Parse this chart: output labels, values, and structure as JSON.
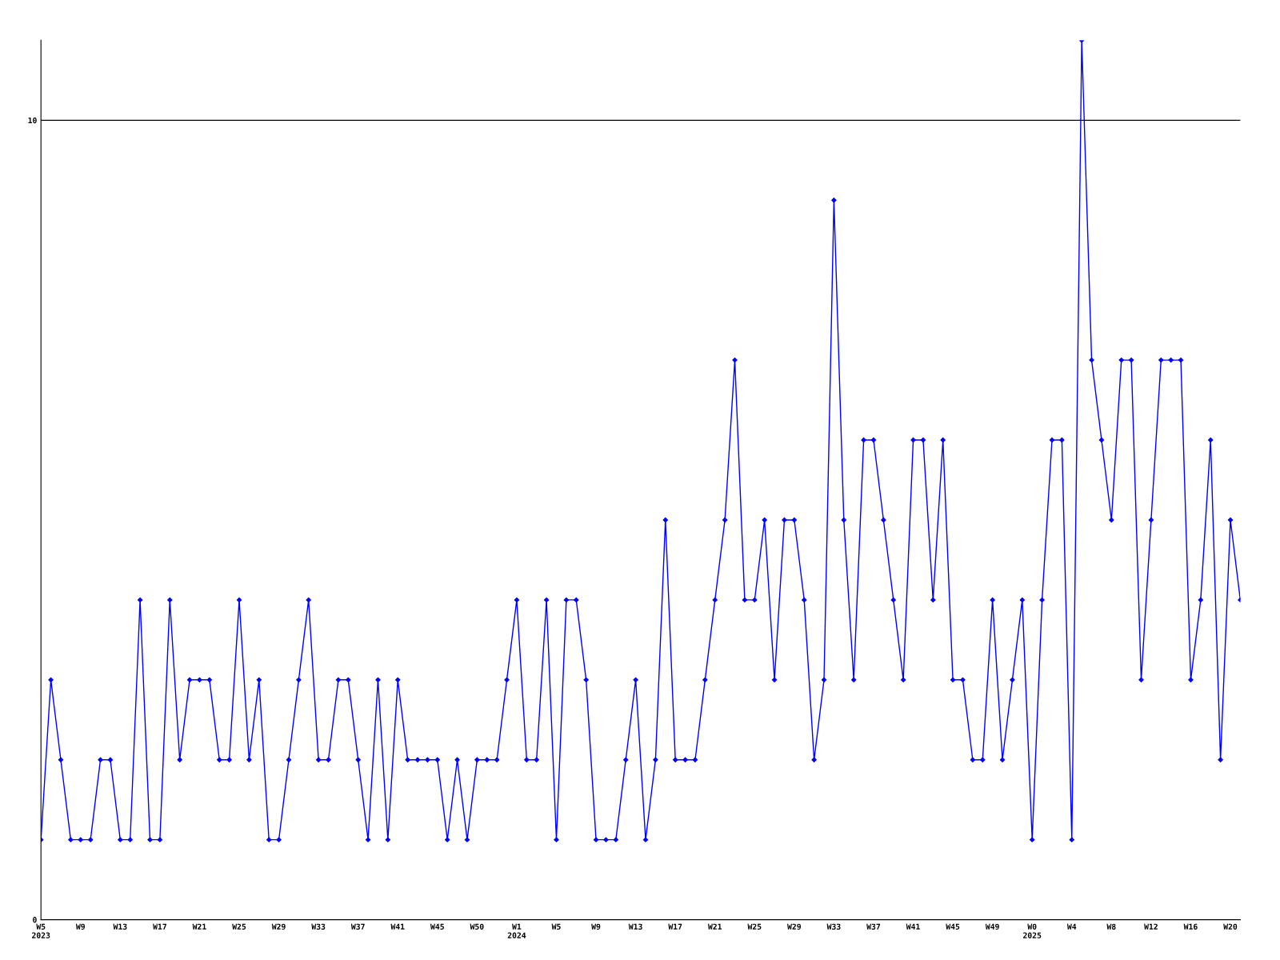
{
  "chart_data": {
    "type": "line",
    "categories": [
      "W5\n2023",
      null,
      null,
      null,
      "W9",
      null,
      null,
      null,
      "W13",
      null,
      null,
      null,
      "W17",
      null,
      null,
      null,
      "W21",
      null,
      null,
      null,
      "W25",
      null,
      null,
      null,
      "W29",
      null,
      null,
      null,
      "W33",
      null,
      null,
      null,
      "W37",
      null,
      null,
      null,
      "W41",
      null,
      null,
      null,
      "W45",
      null,
      null,
      null,
      "W50",
      null,
      null,
      null,
      "W1\n2024",
      null,
      null,
      null,
      "W5",
      null,
      null,
      null,
      "W9",
      null,
      null,
      null,
      "W13",
      null,
      null,
      null,
      "W17",
      null,
      null,
      null,
      "W21",
      null,
      null,
      null,
      "W25",
      null,
      null,
      null,
      "W29",
      null,
      null,
      null,
      "W33",
      null,
      null,
      null,
      "W37",
      null,
      null,
      null,
      "W41",
      null,
      null,
      null,
      "W45",
      null,
      null,
      null,
      "W49",
      null,
      null,
      null,
      "W0\n2025",
      null,
      null,
      null,
      "W4",
      null,
      null,
      null,
      "W8",
      null,
      null,
      null,
      "W12",
      null,
      null,
      null,
      "W16",
      null,
      null,
      null,
      "W20",
      null
    ],
    "series": [
      {
        "color": "#0000ff",
        "values": [
          1,
          3,
          2,
          1,
          1,
          1,
          2,
          2,
          1,
          1,
          4,
          1,
          1,
          4,
          2,
          3,
          3,
          3,
          2,
          2,
          4,
          2,
          3,
          1,
          1,
          2,
          3,
          4,
          2,
          2,
          3,
          3,
          2,
          1,
          3,
          1,
          3,
          2,
          2,
          2,
          2,
          1,
          2,
          1,
          2,
          2,
          2,
          3,
          4,
          2,
          2,
          4,
          1,
          4,
          4,
          3,
          1,
          1,
          1,
          2,
          3,
          1,
          2,
          5,
          2,
          2,
          2,
          3,
          4,
          5,
          7,
          4,
          4,
          5,
          3,
          5,
          5,
          4,
          2,
          3,
          9,
          5,
          3,
          6,
          6,
          5,
          4,
          3,
          6,
          6,
          4,
          6,
          3,
          3,
          2,
          2,
          4,
          2,
          3,
          4,
          1,
          4,
          6,
          6,
          1,
          11,
          7,
          6,
          5,
          7,
          7,
          3,
          5,
          7,
          7,
          7,
          3,
          4,
          6,
          2,
          5,
          4
        ]
      }
    ],
    "ylim": [
      0,
      11
    ],
    "yticks": [
      0,
      10
    ],
    "grid": "y",
    "marker": "diamond",
    "line_style": "solid"
  }
}
